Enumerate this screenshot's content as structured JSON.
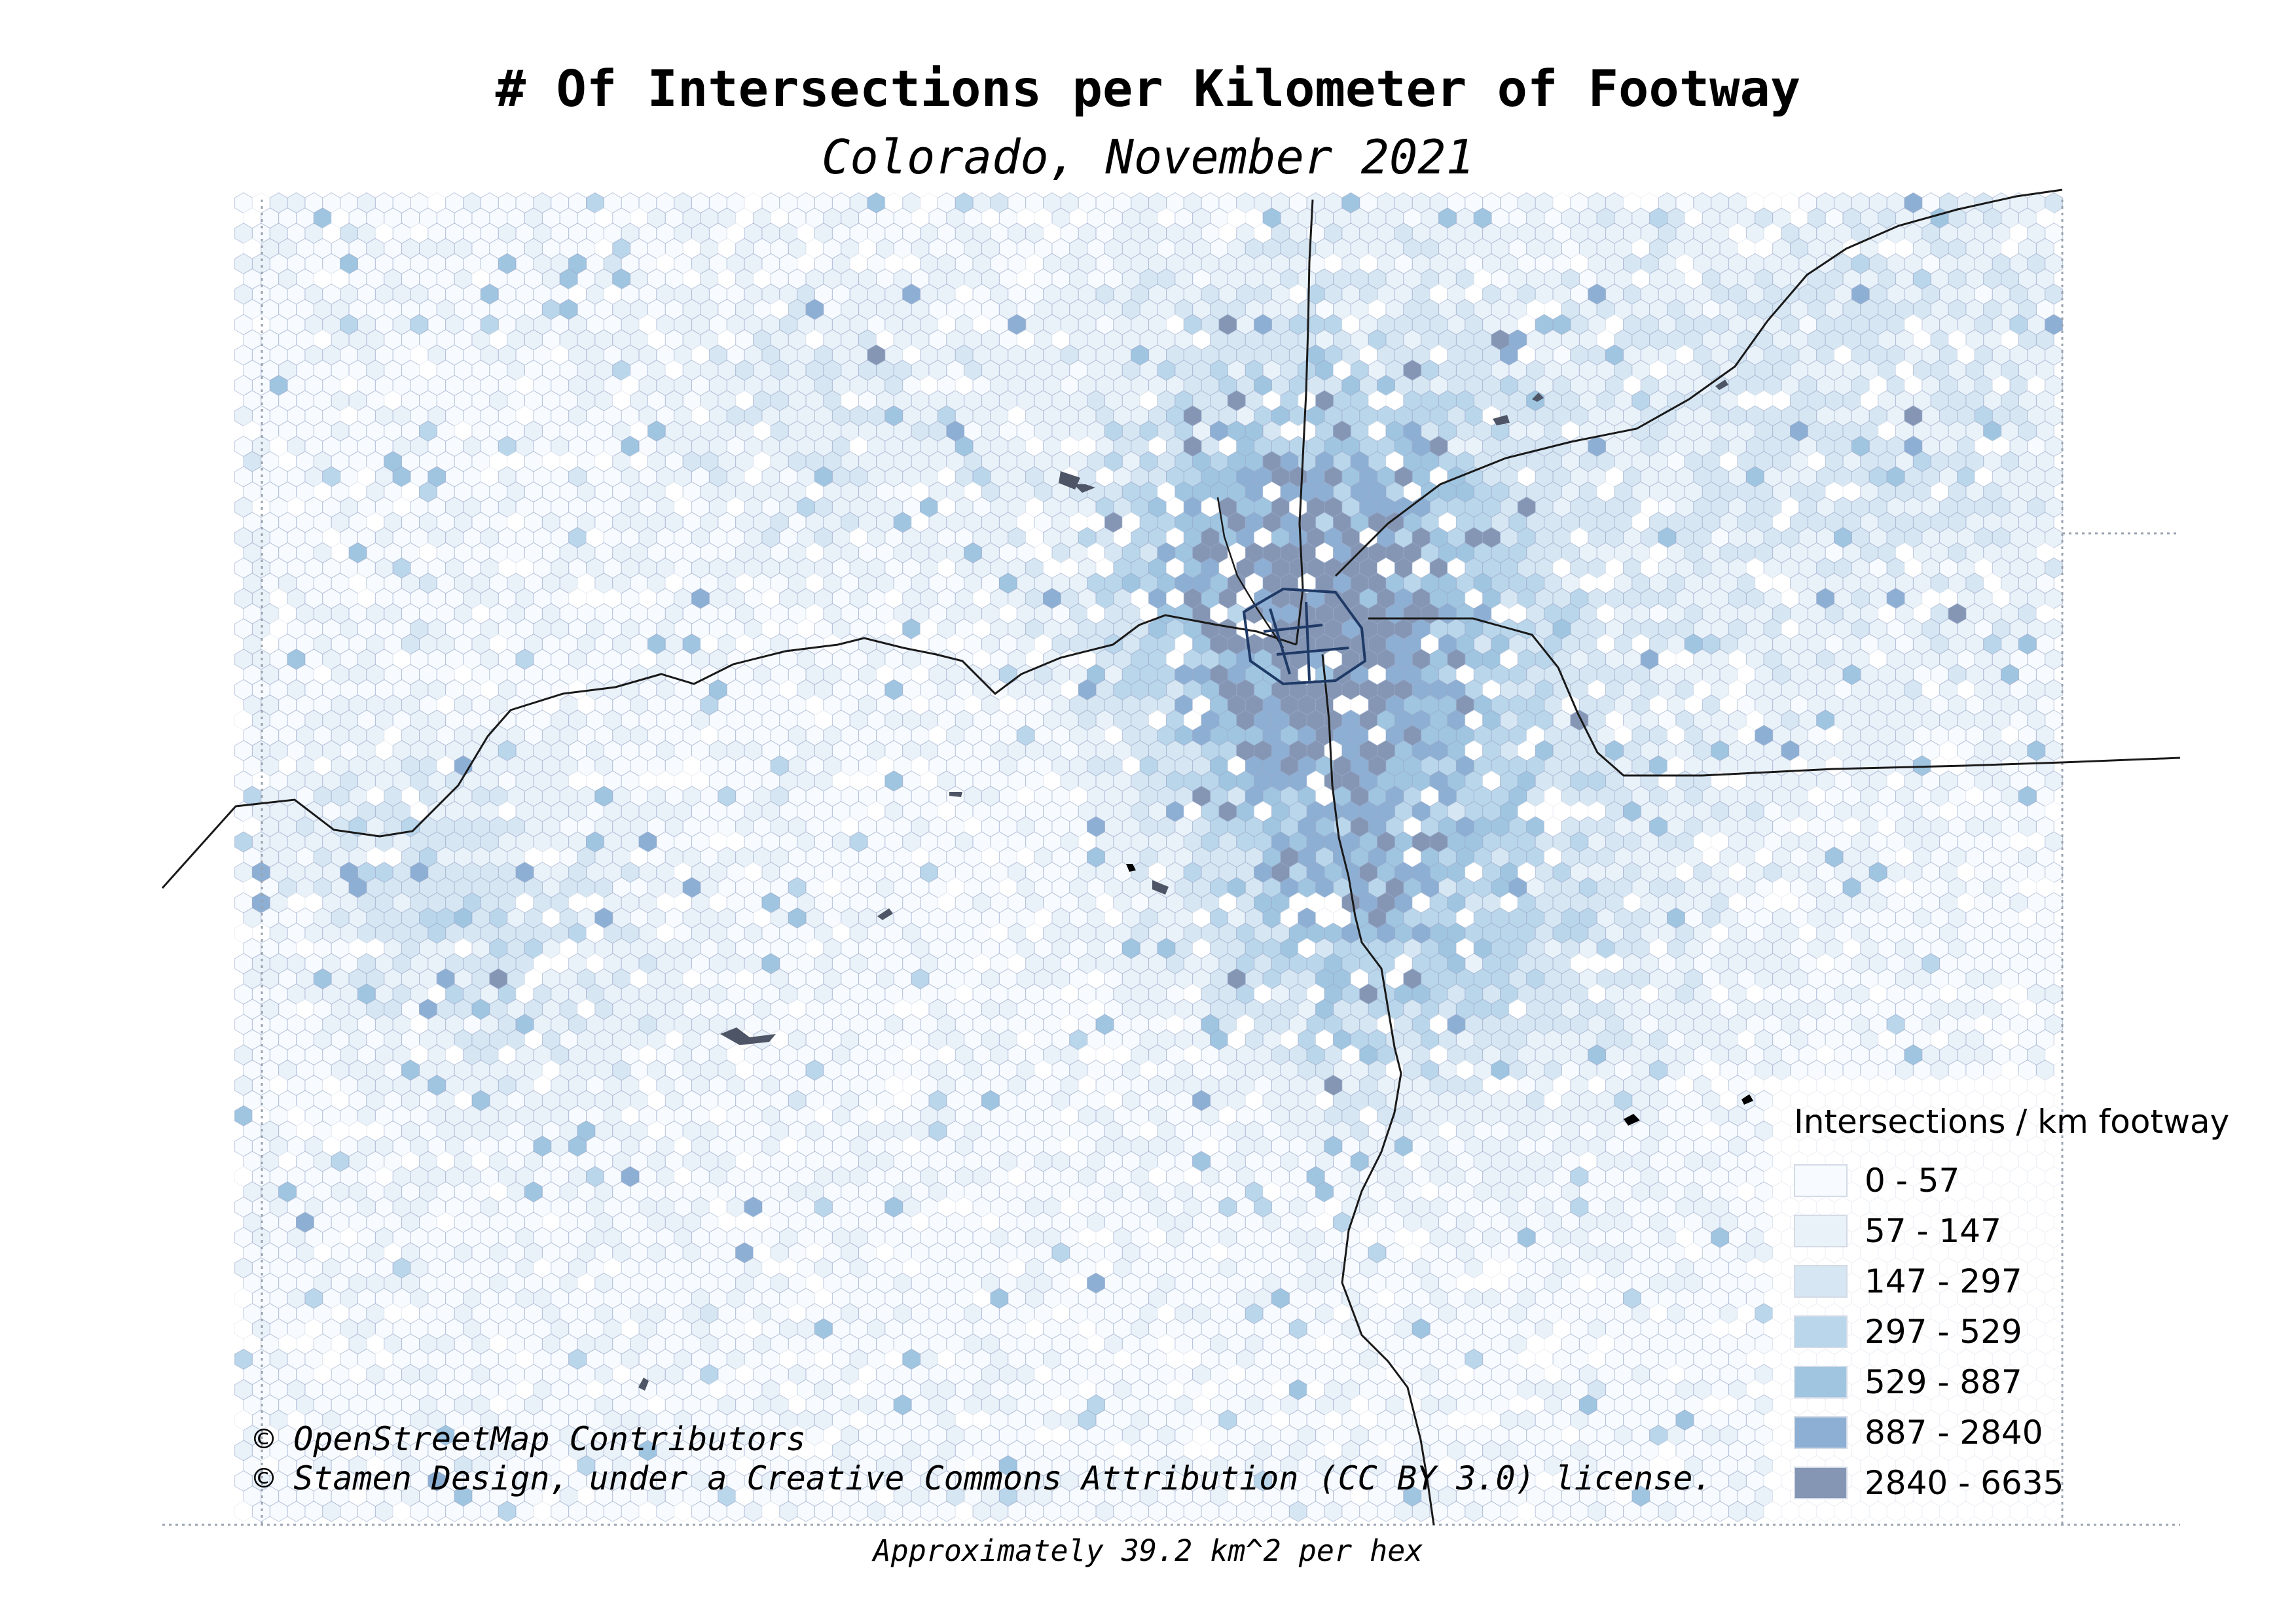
{
  "title": "# Of Intersections per Kilometer of Footway",
  "subtitle": "Colorado, November 2021",
  "attribution": [
    "© OpenStreetMap Contributors",
    "© Stamen Design, under a Creative Commons Attribution (CC BY 3.0) license."
  ],
  "caption": "Approximately 39.2 km^2 per hex",
  "legend": {
    "title": "Intersections / km footway",
    "bins": [
      {
        "label": "0 - 57",
        "color": "#f7fbff"
      },
      {
        "label": "57 - 147",
        "color": "#e9f1f9"
      },
      {
        "label": "147 - 297",
        "color": "#d6e6f2"
      },
      {
        "label": "297 - 529",
        "color": "#bad6eb"
      },
      {
        "label": "529 - 887",
        "color": "#9fc5e1"
      },
      {
        "label": "887 - 2840",
        "color": "#8dafd4"
      },
      {
        "label": "2840 - 6635",
        "color": "#8496b4"
      }
    ]
  },
  "colors": {
    "hex_stroke": "#9aa9c9",
    "road": "#1a1a1a",
    "urban_road": "#1f3a66",
    "water": "#4d5566",
    "background": "#ffffff"
  },
  "map_layers": [
    "hex-grid",
    "highways",
    "urban-roads",
    "water-bodies"
  ]
}
